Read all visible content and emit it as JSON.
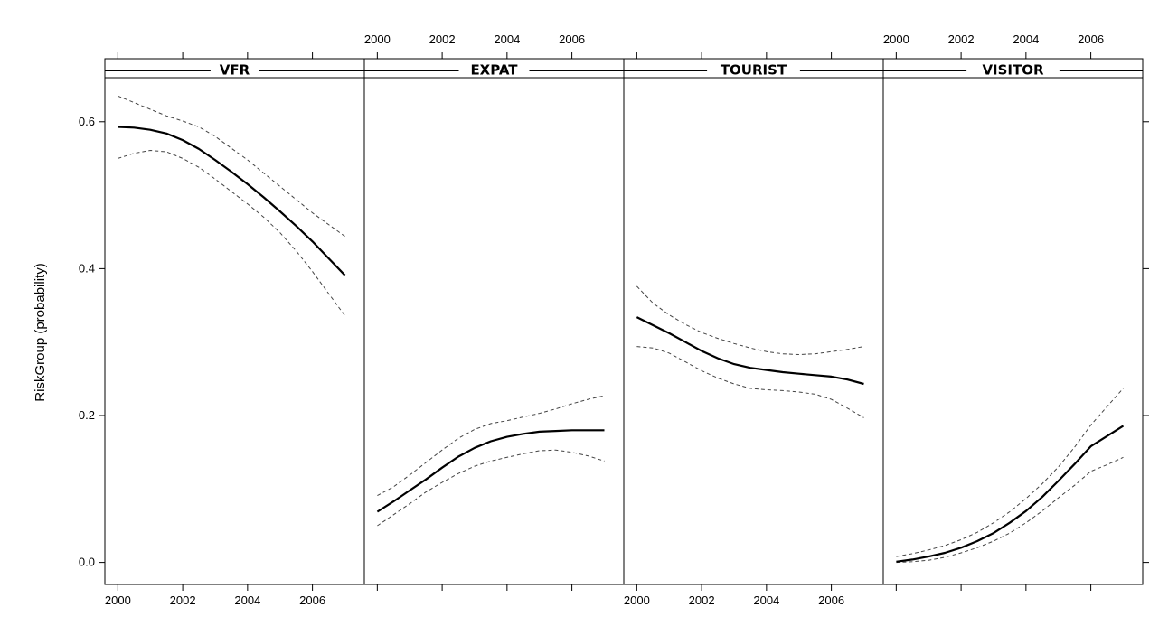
{
  "chart_data": {
    "type": "line",
    "ylabel": "RiskGroup (probability)",
    "xlabel": "",
    "xlim": [
      1999.6,
      2007.6
    ],
    "ylim": [
      -0.03,
      0.66
    ],
    "x_ticks": [
      2000,
      2002,
      2004,
      2006
    ],
    "y_ticks": [
      0.0,
      0.2,
      0.4,
      0.6
    ],
    "x_tick_labels": [
      "2000",
      "2002",
      "2004",
      "2006"
    ],
    "y_tick_labels": [
      "0.0",
      "0.2",
      "0.4",
      "0.6"
    ],
    "x_label_positions_by_panel": [
      "bottom",
      "top",
      "bottom",
      "top"
    ],
    "grid": false,
    "panels": [
      {
        "strip": "VFR",
        "x": [
          2000,
          2000.5,
          2001,
          2001.5,
          2002,
          2002.5,
          2003,
          2003.5,
          2004,
          2004.5,
          2005,
          2005.5,
          2006,
          2006.5,
          2007
        ],
        "fit": [
          0.593,
          0.592,
          0.589,
          0.584,
          0.575,
          0.563,
          0.548,
          0.532,
          0.515,
          0.497,
          0.478,
          0.458,
          0.437,
          0.414,
          0.391
        ],
        "upper": [
          0.635,
          0.626,
          0.617,
          0.608,
          0.601,
          0.593,
          0.58,
          0.564,
          0.548,
          0.53,
          0.512,
          0.494,
          0.476,
          0.46,
          0.444
        ],
        "lower": [
          0.55,
          0.557,
          0.561,
          0.559,
          0.55,
          0.538,
          0.522,
          0.505,
          0.488,
          0.47,
          0.449,
          0.424,
          0.396,
          0.366,
          0.336
        ]
      },
      {
        "strip": "EXPAT",
        "x": [
          2000,
          2000.5,
          2001,
          2001.5,
          2002,
          2002.5,
          2003,
          2003.5,
          2004,
          2004.5,
          2005,
          2005.5,
          2006,
          2006.5,
          2007
        ],
        "fit": [
          0.069,
          0.083,
          0.098,
          0.113,
          0.129,
          0.144,
          0.156,
          0.165,
          0.171,
          0.175,
          0.178,
          0.179,
          0.18,
          0.18,
          0.18
        ],
        "upper": [
          0.091,
          0.103,
          0.119,
          0.136,
          0.153,
          0.169,
          0.181,
          0.189,
          0.193,
          0.198,
          0.203,
          0.209,
          0.216,
          0.222,
          0.227
        ],
        "lower": [
          0.05,
          0.065,
          0.08,
          0.096,
          0.109,
          0.121,
          0.131,
          0.138,
          0.143,
          0.148,
          0.152,
          0.153,
          0.15,
          0.145,
          0.138
        ]
      },
      {
        "strip": "TOURIST",
        "x": [
          2000,
          2000.5,
          2001,
          2001.5,
          2002,
          2002.5,
          2003,
          2003.5,
          2004,
          2004.5,
          2005,
          2005.5,
          2006,
          2006.5,
          2007
        ],
        "fit": [
          0.334,
          0.323,
          0.312,
          0.3,
          0.288,
          0.278,
          0.27,
          0.265,
          0.262,
          0.259,
          0.257,
          0.255,
          0.253,
          0.249,
          0.243
        ],
        "upper": [
          0.376,
          0.353,
          0.337,
          0.324,
          0.313,
          0.305,
          0.298,
          0.292,
          0.287,
          0.284,
          0.283,
          0.284,
          0.287,
          0.29,
          0.294
        ],
        "lower": [
          0.294,
          0.292,
          0.285,
          0.273,
          0.261,
          0.251,
          0.243,
          0.237,
          0.235,
          0.234,
          0.232,
          0.229,
          0.222,
          0.21,
          0.197
        ]
      },
      {
        "strip": "VISITOR",
        "x": [
          2000,
          2000.5,
          2001,
          2001.5,
          2002,
          2002.5,
          2003,
          2003.5,
          2004,
          2004.5,
          2005,
          2005.5,
          2006,
          2006.5,
          2007
        ],
        "fit": [
          0.001,
          0.004,
          0.008,
          0.013,
          0.02,
          0.029,
          0.04,
          0.054,
          0.07,
          0.089,
          0.111,
          0.134,
          0.158,
          0.172,
          0.186
        ],
        "upper": [
          0.008,
          0.012,
          0.017,
          0.023,
          0.031,
          0.041,
          0.054,
          0.069,
          0.087,
          0.107,
          0.13,
          0.157,
          0.187,
          0.212,
          0.237
        ],
        "lower": [
          0.0,
          0.001,
          0.003,
          0.007,
          0.013,
          0.02,
          0.029,
          0.04,
          0.054,
          0.07,
          0.088,
          0.105,
          0.124,
          0.133,
          0.143
        ]
      }
    ]
  }
}
